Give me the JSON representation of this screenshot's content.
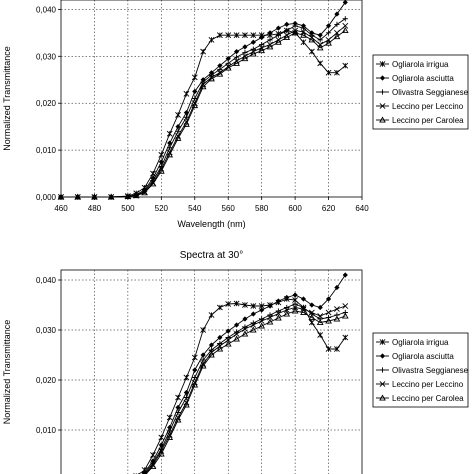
{
  "chart_data": [
    {
      "type": "line",
      "title": "",
      "xlabel": "Wavelength (nm)",
      "ylabel": "Normalized Transmittance",
      "xlim": [
        460,
        640
      ],
      "ylim": [
        0,
        0.042
      ],
      "xticks": [
        460,
        480,
        500,
        520,
        540,
        560,
        580,
        600,
        620,
        640
      ],
      "xtick_labels": [
        "460",
        "480",
        "500",
        "520",
        "540",
        "560",
        "580",
        "600",
        "620",
        "640"
      ],
      "yticks": [
        0,
        0.01,
        0.02,
        0.03,
        0.04
      ],
      "ytick_labels": [
        "0,000",
        "0,010",
        "0,020",
        "0,030",
        "0,040"
      ],
      "grid": true,
      "legend": "right",
      "x": [
        460,
        470,
        480,
        490,
        500,
        505,
        510,
        515,
        520,
        525,
        530,
        535,
        540,
        545,
        550,
        555,
        560,
        565,
        570,
        575,
        580,
        585,
        590,
        595,
        600,
        605,
        610,
        615,
        620,
        625,
        630
      ],
      "series": [
        {
          "name": "Ogliarola irrigua",
          "marker": "asterisk",
          "values": [
            0,
            0,
            0,
            0,
            0.0002,
            0.0008,
            0.002,
            0.005,
            0.009,
            0.0135,
            0.0175,
            0.022,
            0.0255,
            0.031,
            0.0335,
            0.0345,
            0.0345,
            0.0345,
            0.0345,
            0.0345,
            0.0345,
            0.0345,
            0.0348,
            0.0355,
            0.035,
            0.033,
            0.031,
            0.0285,
            0.0265,
            0.0265,
            0.028
          ]
        },
        {
          "name": "Ogliarola asciutta",
          "marker": "diamond",
          "values": [
            0,
            0,
            0,
            0,
            0.0001,
            0.0005,
            0.0015,
            0.004,
            0.0075,
            0.0115,
            0.015,
            0.018,
            0.0225,
            0.025,
            0.0265,
            0.028,
            0.0295,
            0.031,
            0.032,
            0.033,
            0.034,
            0.035,
            0.036,
            0.0368,
            0.037,
            0.0365,
            0.035,
            0.0345,
            0.0365,
            0.039,
            0.0415
          ]
        },
        {
          "name": "Olivastra Seggianese",
          "marker": "plus",
          "values": [
            0,
            0,
            0,
            0,
            0.0001,
            0.0004,
            0.0012,
            0.0035,
            0.0065,
            0.0105,
            0.014,
            0.017,
            0.021,
            0.0245,
            0.026,
            0.0272,
            0.0285,
            0.0298,
            0.0308,
            0.0315,
            0.0325,
            0.0335,
            0.0345,
            0.0355,
            0.0365,
            0.036,
            0.0345,
            0.0335,
            0.035,
            0.0368,
            0.038
          ]
        },
        {
          "name": "Leccino per Leccino",
          "marker": "x",
          "values": [
            0,
            0,
            0,
            0,
            0.0001,
            0.0003,
            0.001,
            0.003,
            0.006,
            0.0095,
            0.013,
            0.016,
            0.02,
            0.024,
            0.0255,
            0.0265,
            0.0278,
            0.029,
            0.03,
            0.031,
            0.0318,
            0.0325,
            0.0335,
            0.0345,
            0.0355,
            0.0352,
            0.034,
            0.0325,
            0.0335,
            0.035,
            0.0365
          ]
        },
        {
          "name": "Leccino per Carolea",
          "marker": "triangle",
          "values": [
            0,
            0,
            0,
            0,
            0.0001,
            0.0003,
            0.0009,
            0.0028,
            0.0055,
            0.009,
            0.0125,
            0.0155,
            0.0195,
            0.0235,
            0.0252,
            0.0262,
            0.0275,
            0.0285,
            0.0295,
            0.0305,
            0.0312,
            0.032,
            0.033,
            0.034,
            0.035,
            0.0345,
            0.0335,
            0.0318,
            0.0328,
            0.0342,
            0.0355
          ]
        }
      ]
    },
    {
      "type": "line",
      "title": "Spectra at 30°",
      "xlabel": "",
      "ylabel": "Normalized Transmittance",
      "xlim": [
        460,
        640
      ],
      "ylim": [
        0,
        0.042
      ],
      "xticks": [
        460,
        480,
        500,
        520,
        540,
        560,
        580,
        600,
        620,
        640
      ],
      "xtick_labels": [],
      "yticks": [
        0.01,
        0.02,
        0.03,
        0.04
      ],
      "ytick_labels": [
        "0,010",
        "0,020",
        "0,030",
        "0,040"
      ],
      "grid": true,
      "legend": "right",
      "x": [
        460,
        470,
        480,
        490,
        500,
        505,
        510,
        515,
        520,
        525,
        530,
        535,
        540,
        545,
        550,
        555,
        560,
        565,
        570,
        575,
        580,
        585,
        590,
        595,
        600,
        605,
        610,
        615,
        620,
        625,
        630
      ],
      "series": [
        {
          "name": "Ogliarola irrigua",
          "marker": "asterisk",
          "values": [
            0,
            0,
            0,
            0,
            0.0002,
            0.0008,
            0.002,
            0.005,
            0.0085,
            0.0125,
            0.0165,
            0.0205,
            0.0245,
            0.03,
            0.033,
            0.0345,
            0.0352,
            0.0353,
            0.035,
            0.0348,
            0.0348,
            0.035,
            0.0355,
            0.0362,
            0.036,
            0.0345,
            0.0315,
            0.029,
            0.0262,
            0.0262,
            0.0285
          ]
        },
        {
          "name": "Ogliarola asciutta",
          "marker": "diamond",
          "values": [
            0,
            0,
            0,
            0,
            0.0001,
            0.0005,
            0.0015,
            0.0038,
            0.007,
            0.0105,
            0.0145,
            0.0175,
            0.022,
            0.025,
            0.027,
            0.0285,
            0.0298,
            0.031,
            0.0322,
            0.0332,
            0.034,
            0.0348,
            0.0358,
            0.0365,
            0.037,
            0.0362,
            0.035,
            0.0345,
            0.0362,
            0.0385,
            0.041
          ]
        },
        {
          "name": "Olivastra Seggianese",
          "marker": "plus",
          "values": [
            0,
            0,
            0,
            0,
            0.0001,
            0.0004,
            0.0012,
            0.0034,
            0.0062,
            0.0098,
            0.0135,
            0.0165,
            0.0205,
            0.024,
            0.026,
            0.0273,
            0.0285,
            0.0296,
            0.0306,
            0.0314,
            0.0322,
            0.033,
            0.0338,
            0.0345,
            0.0352,
            0.0345,
            0.0332,
            0.0322,
            0.0325,
            0.033,
            0.0335
          ]
        },
        {
          "name": "Leccino per Leccino",
          "marker": "x",
          "values": [
            0,
            0,
            0,
            0,
            0.0001,
            0.0003,
            0.001,
            0.003,
            0.0058,
            0.009,
            0.0125,
            0.0155,
            0.0195,
            0.0232,
            0.0255,
            0.0268,
            0.028,
            0.0292,
            0.0302,
            0.031,
            0.0318,
            0.0325,
            0.0333,
            0.034,
            0.0345,
            0.0342,
            0.0335,
            0.0328,
            0.0335,
            0.0342,
            0.0348
          ]
        },
        {
          "name": "Leccino per Carolea",
          "marker": "triangle",
          "values": [
            0,
            0,
            0,
            0,
            0.0001,
            0.0003,
            0.0009,
            0.0027,
            0.0052,
            0.0085,
            0.012,
            0.015,
            0.019,
            0.0228,
            0.025,
            0.0262,
            0.0272,
            0.0282,
            0.0292,
            0.03,
            0.0308,
            0.0316,
            0.0324,
            0.0332,
            0.0338,
            0.0335,
            0.0325,
            0.0315,
            0.0318,
            0.0322,
            0.0328
          ]
        }
      ]
    }
  ]
}
